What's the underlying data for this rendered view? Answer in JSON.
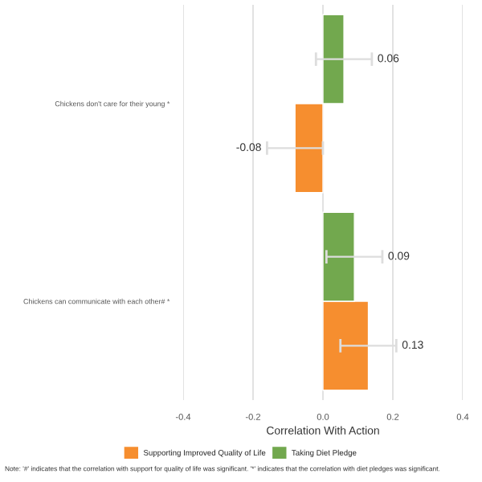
{
  "chart_data": {
    "type": "bar",
    "orientation": "horizontal",
    "categories": [
      "Chickens don't care for their young *",
      "Chickens can communicate with each other# *"
    ],
    "series": [
      {
        "name": "Supporting Improved Quality of Life",
        "color": "#f68e2f",
        "values": [
          -0.08,
          0.13
        ],
        "errors": [
          0.08,
          0.08
        ]
      },
      {
        "name": "Taking Diet Pledge",
        "color": "#72a84e",
        "values": [
          0.06,
          0.09
        ],
        "errors": [
          0.08,
          0.08
        ]
      }
    ],
    "xlabel": "Correlation With Action",
    "xlim": [
      -0.4,
      0.4
    ],
    "xticks": [
      {
        "value": -0.4,
        "label": "-0.4"
      },
      {
        "value": -0.2,
        "label": "-0.2"
      },
      {
        "value": 0,
        "label": "0.0"
      },
      {
        "value": 0.2,
        "label": "0.2"
      },
      {
        "value": 0.4,
        "label": "0.4"
      }
    ],
    "grid": "x",
    "legend": "bottom",
    "data_labels": true,
    "annotations": [
      "Note: '#' indicates that the correlation with support for quality of life was significant. '*' indicates that the correlation with diet pledges was significant."
    ]
  }
}
